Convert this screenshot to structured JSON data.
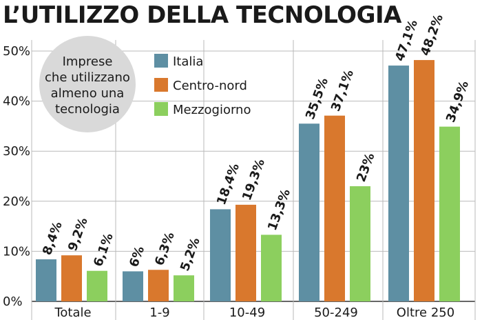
{
  "chart_data": {
    "type": "bar",
    "title": "L’UTILIZZO DELLA TECNOLOGIA",
    "categories": [
      "Totale",
      "1-9",
      "10-49",
      "50-249",
      "Oltre 250"
    ],
    "series": [
      {
        "name": "Italia",
        "color": "#5e8fa3",
        "values": [
          8.4,
          6,
          18.4,
          35.5,
          47.1
        ],
        "labels": [
          "8,4%",
          "6%",
          "18,4%",
          "35,5%",
          "47,1%"
        ]
      },
      {
        "name": "Centro-nord",
        "color": "#d9782d",
        "values": [
          9.2,
          6.3,
          19.3,
          37.1,
          48.2
        ],
        "labels": [
          "9,2%",
          "6,3%",
          "19,3%",
          "37,1%",
          "48,2%"
        ]
      },
      {
        "name": "Mezzogiorno",
        "color": "#8ccf5e",
        "values": [
          6.1,
          5.2,
          13.3,
          23,
          34.9
        ],
        "labels": [
          "6,1%",
          "5,2%",
          "13,3%",
          "23%",
          "34,9%"
        ]
      }
    ],
    "ylim": [
      0,
      50
    ],
    "yticks": [
      0,
      10,
      20,
      30,
      40,
      50
    ],
    "ytick_labels": [
      "0%",
      "10%",
      "20%",
      "30%",
      "40%",
      "50%"
    ],
    "grid": true,
    "legend_position": "top-left",
    "annotation": [
      "Imprese",
      "che utilizzano",
      "almeno una",
      "tecnologia"
    ]
  }
}
